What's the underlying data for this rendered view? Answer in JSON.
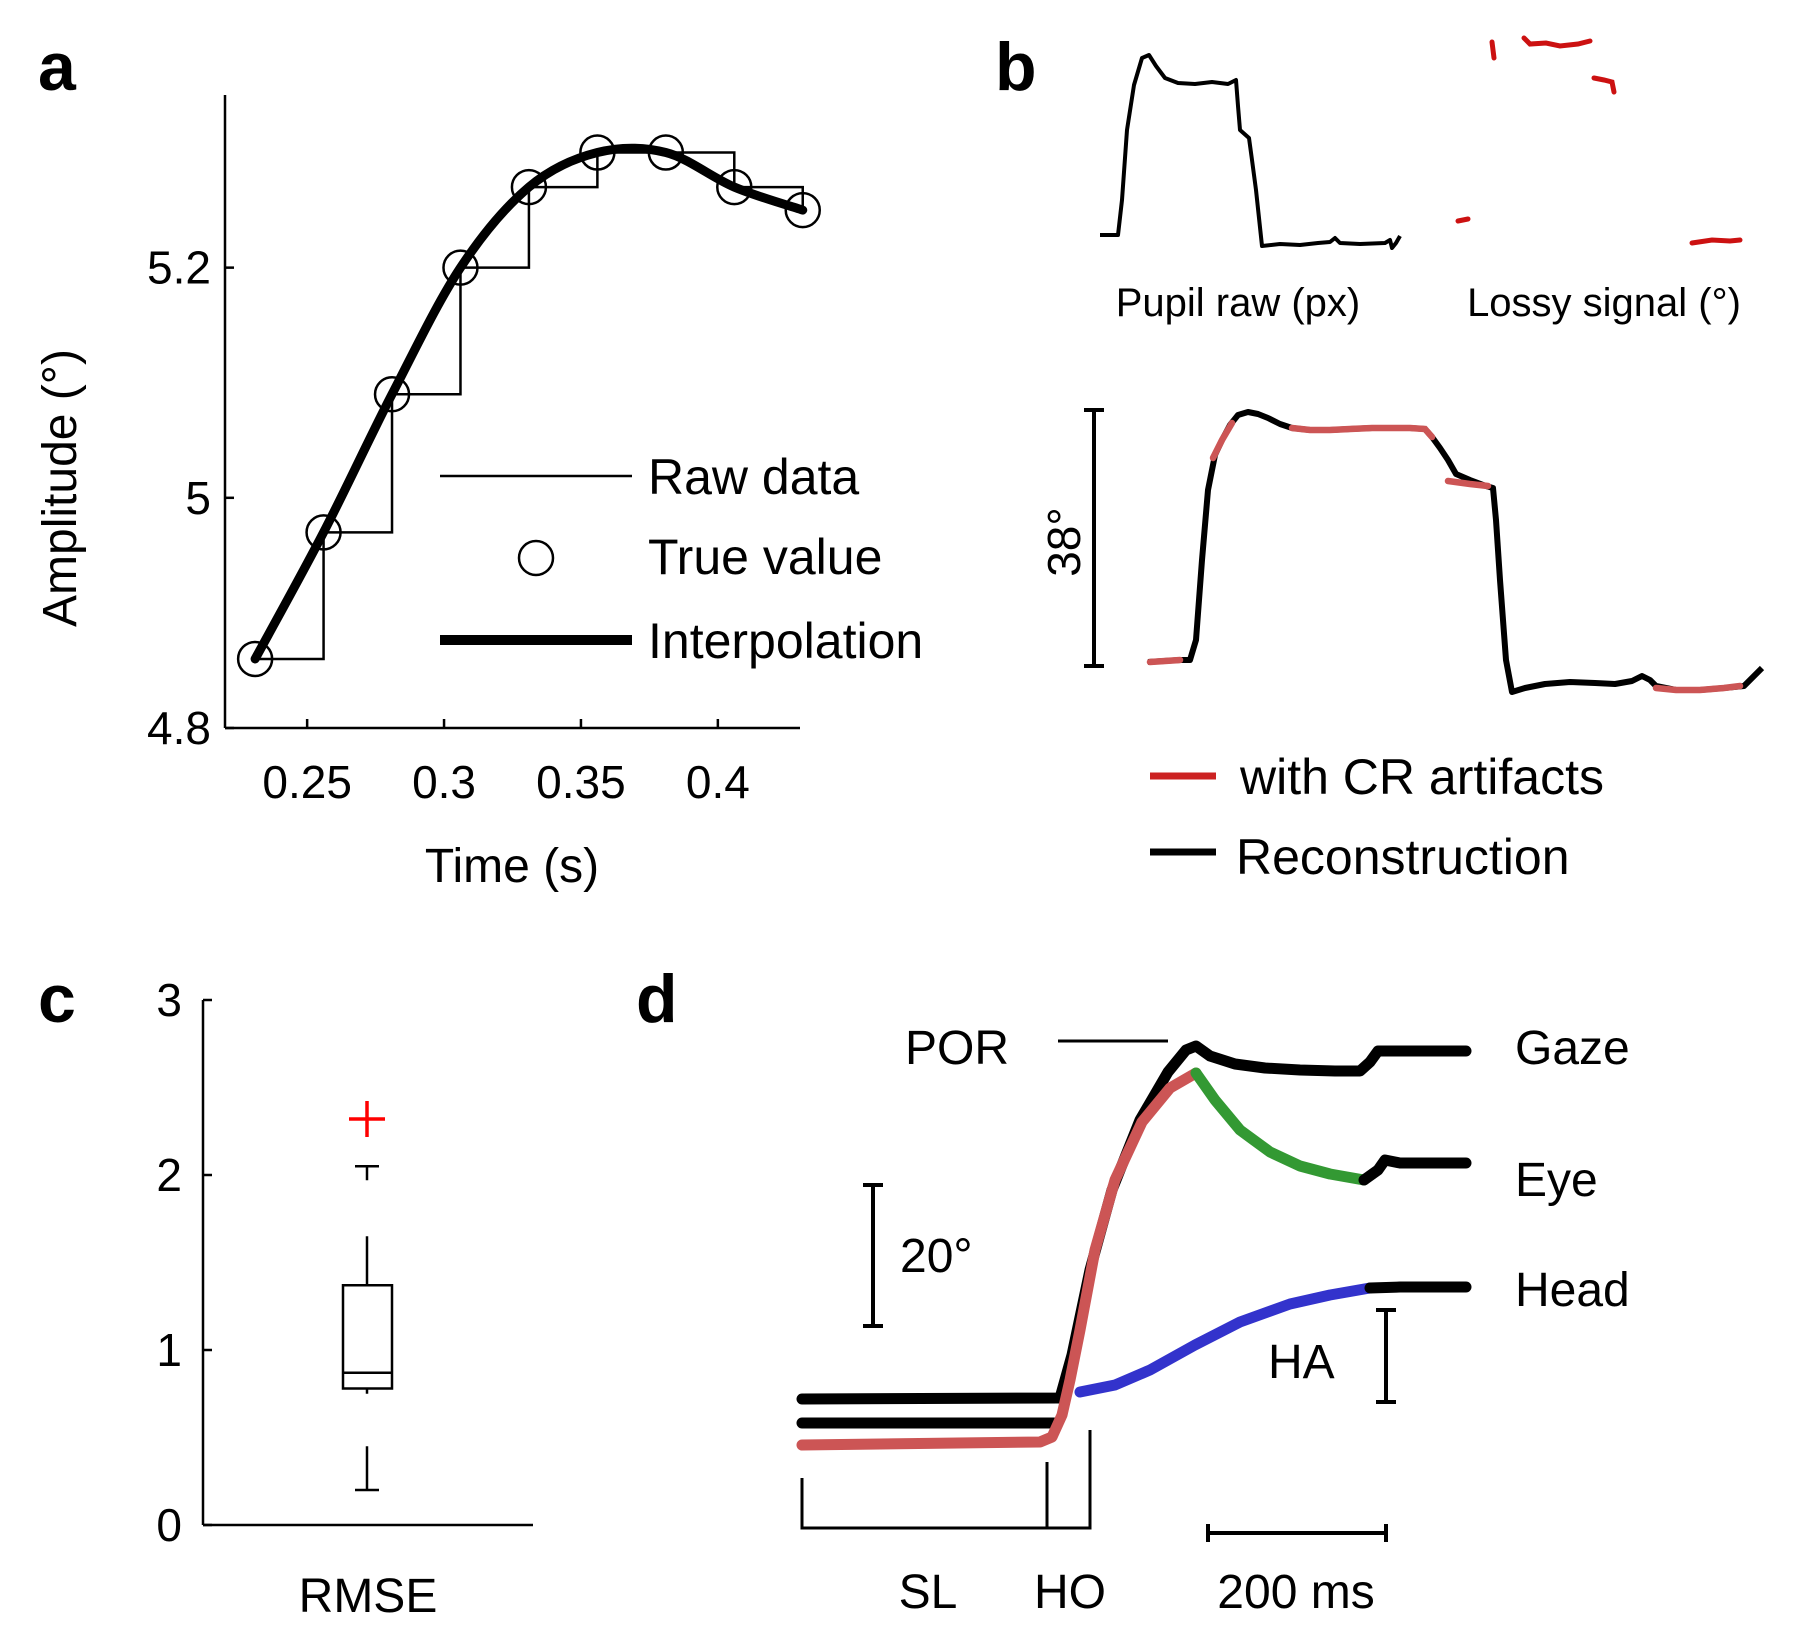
{
  "panels": {
    "a": {
      "label": "a",
      "chart_data": {
        "type": "line",
        "xlabel": "Time (s)",
        "ylabel": "Amplitude  (°)",
        "xlim": [
          0.22,
          0.43
        ],
        "ylim": [
          4.8,
          5.35
        ],
        "xticks": [
          0.25,
          0.3,
          0.35,
          0.4
        ],
        "xtick_labels": [
          "0.25",
          "0.3",
          "0.35",
          "0.4"
        ],
        "yticks": [
          4.8,
          5.0,
          5.2
        ],
        "ytick_labels": [
          "4.8",
          "5",
          "5.2"
        ],
        "series": [
          {
            "name": "Raw data",
            "style": "step",
            "x": [
              0.231,
              0.256,
              0.281,
              0.306,
              0.331,
              0.356,
              0.381,
              0.406,
              0.431
            ],
            "y": [
              4.86,
              4.97,
              5.09,
              5.2,
              5.27,
              5.3,
              5.3,
              5.27,
              5.25
            ]
          },
          {
            "name": "True value",
            "style": "markers",
            "x": [
              0.231,
              0.256,
              0.281,
              0.306,
              0.331,
              0.356,
              0.381,
              0.406,
              0.431
            ],
            "y": [
              4.86,
              4.97,
              5.09,
              5.2,
              5.27,
              5.3,
              5.3,
              5.27,
              5.25
            ]
          },
          {
            "name": "Interpolation",
            "style": "smooth",
            "x": [
              0.231,
              0.256,
              0.281,
              0.306,
              0.331,
              0.356,
              0.381,
              0.406,
              0.431
            ],
            "y": [
              4.86,
              4.97,
              5.09,
              5.2,
              5.27,
              5.3,
              5.3,
              5.27,
              5.25
            ]
          }
        ],
        "legend": [
          "Raw data",
          "True value",
          "Interpolation"
        ]
      }
    },
    "b": {
      "label": "b",
      "top_left_caption": "Pupil raw (px)",
      "top_right_caption": "Lossy signal (°)",
      "scale_label": "38°",
      "legend": [
        {
          "label": "with CR artifacts",
          "color": "#cc2222"
        },
        {
          "label": "Reconstruction",
          "color": "#000000"
        }
      ]
    },
    "c": {
      "label": "c",
      "chart_data": {
        "type": "box",
        "xlabel": "RMSE",
        "ylim": [
          0,
          3
        ],
        "yticks": [
          0,
          1,
          2,
          3
        ],
        "ytick_labels": [
          "0",
          "1",
          "2",
          "3"
        ],
        "box": {
          "whisker_low": 0.2,
          "q1": 0.78,
          "median": 0.87,
          "q3": 1.37,
          "whisker_high": 2.05,
          "outliers": [
            2.32
          ],
          "extra_marks": [
            0.45,
            0.75,
            1.65
          ]
        },
        "outlier_color": "#ff0000"
      }
    },
    "d": {
      "label": "d",
      "labels": {
        "por": "POR",
        "gaze": "Gaze",
        "eye": "Eye",
        "head": "Head",
        "scale": "20°",
        "ha": "HA",
        "sl": "SL",
        "ho": "HO",
        "time_scale": "200 ms"
      },
      "colors": {
        "gaze": "#000000",
        "eye_saccade": "#cc5555",
        "eye_vor": "#339933",
        "head": "#3333cc"
      }
    }
  }
}
